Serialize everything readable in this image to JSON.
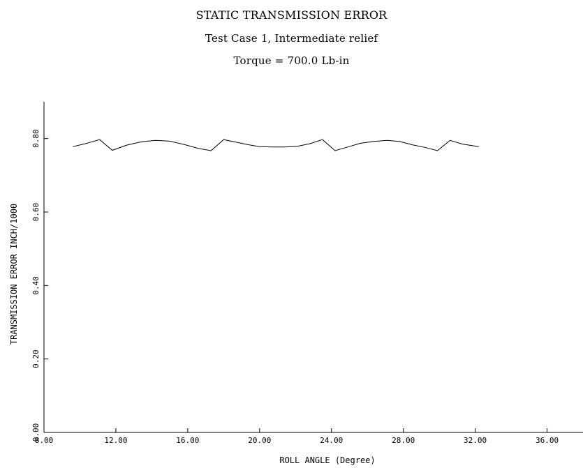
{
  "chart_data": {
    "type": "line",
    "title": "STATIC TRANSMISSION ERROR",
    "subtitle": "Test Case 1, Intermediate relief",
    "subtitle2": "Torque = 700.0  Lb-in",
    "xlabel": "ROLL ANGLE   (Degree)",
    "ylabel": "TRANSMISSION ERROR INCH/1000",
    "xlim": [
      8,
      38
    ],
    "ylim": [
      0,
      0.9
    ],
    "xticks": [
      8,
      12,
      16,
      20,
      24,
      28,
      32,
      36
    ],
    "xtick_labels": [
      "8.00",
      "12.00",
      "16.00",
      "20.00",
      "24.00",
      "28.00",
      "32.00",
      "36.00"
    ],
    "yticks": [
      0,
      0.2,
      0.4,
      0.6,
      0.8
    ],
    "ytick_labels": [
      "0.00",
      "0.20",
      "0.40",
      "0.60",
      "0.80"
    ],
    "grid": false,
    "series": [
      {
        "x": [
          9.6,
          10.3,
          11.1,
          11.8,
          12.6,
          13.4,
          14.2,
          15.0,
          15.8,
          16.6,
          17.3,
          18.0,
          18.7,
          19.4,
          20.0,
          20.7,
          21.4,
          22.1,
          22.8,
          23.5,
          24.2,
          24.9,
          25.6,
          26.3,
          27.1,
          27.8,
          28.5,
          29.2,
          29.9,
          30.6,
          31.3,
          32.2
        ],
        "y": [
          0.778,
          0.786,
          0.797,
          0.768,
          0.782,
          0.791,
          0.795,
          0.793,
          0.784,
          0.773,
          0.767,
          0.797,
          0.79,
          0.783,
          0.778,
          0.777,
          0.777,
          0.779,
          0.786,
          0.797,
          0.767,
          0.777,
          0.787,
          0.792,
          0.795,
          0.792,
          0.783,
          0.776,
          0.767,
          0.795,
          0.785,
          0.778
        ]
      }
    ]
  }
}
